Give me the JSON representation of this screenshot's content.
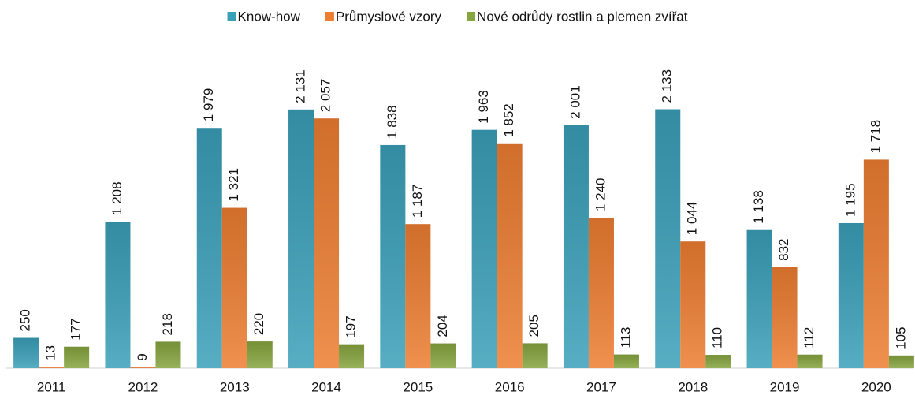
{
  "chart_data": {
    "type": "bar",
    "categories": [
      "2011",
      "2012",
      "2013",
      "2014",
      "2015",
      "2016",
      "2017",
      "2018",
      "2019",
      "2020"
    ],
    "series": [
      {
        "name": "Know-how",
        "color": "#3a9fb8",
        "values": [
          250,
          1208,
          1979,
          2131,
          1838,
          1963,
          2001,
          2133,
          1138,
          1195
        ],
        "value_labels": [
          "250",
          "1 208",
          "1 979",
          "2 131",
          "1 838",
          "1 963",
          "2 001",
          "2 133",
          "1 138",
          "1 195"
        ]
      },
      {
        "name": "Průmyslové vzory",
        "color": "#ed7d31",
        "values": [
          13,
          9,
          1321,
          2057,
          1187,
          1852,
          1240,
          1044,
          832,
          1718
        ],
        "value_labels": [
          "13",
          "9",
          "1 321",
          "2 057",
          "1 187",
          "1 852",
          "1 240",
          "1 044",
          "832",
          "1 718"
        ]
      },
      {
        "name": "Nové odrůdy rostlin a plemen zvířat",
        "color": "#86a43f",
        "values": [
          177,
          218,
          220,
          197,
          204,
          205,
          113,
          110,
          112,
          105
        ],
        "value_labels": [
          "177",
          "218",
          "220",
          "197",
          "204",
          "205",
          "113",
          "110",
          "112",
          "105"
        ]
      }
    ],
    "ylim": [
      0,
      2500
    ],
    "legend": "top"
  }
}
